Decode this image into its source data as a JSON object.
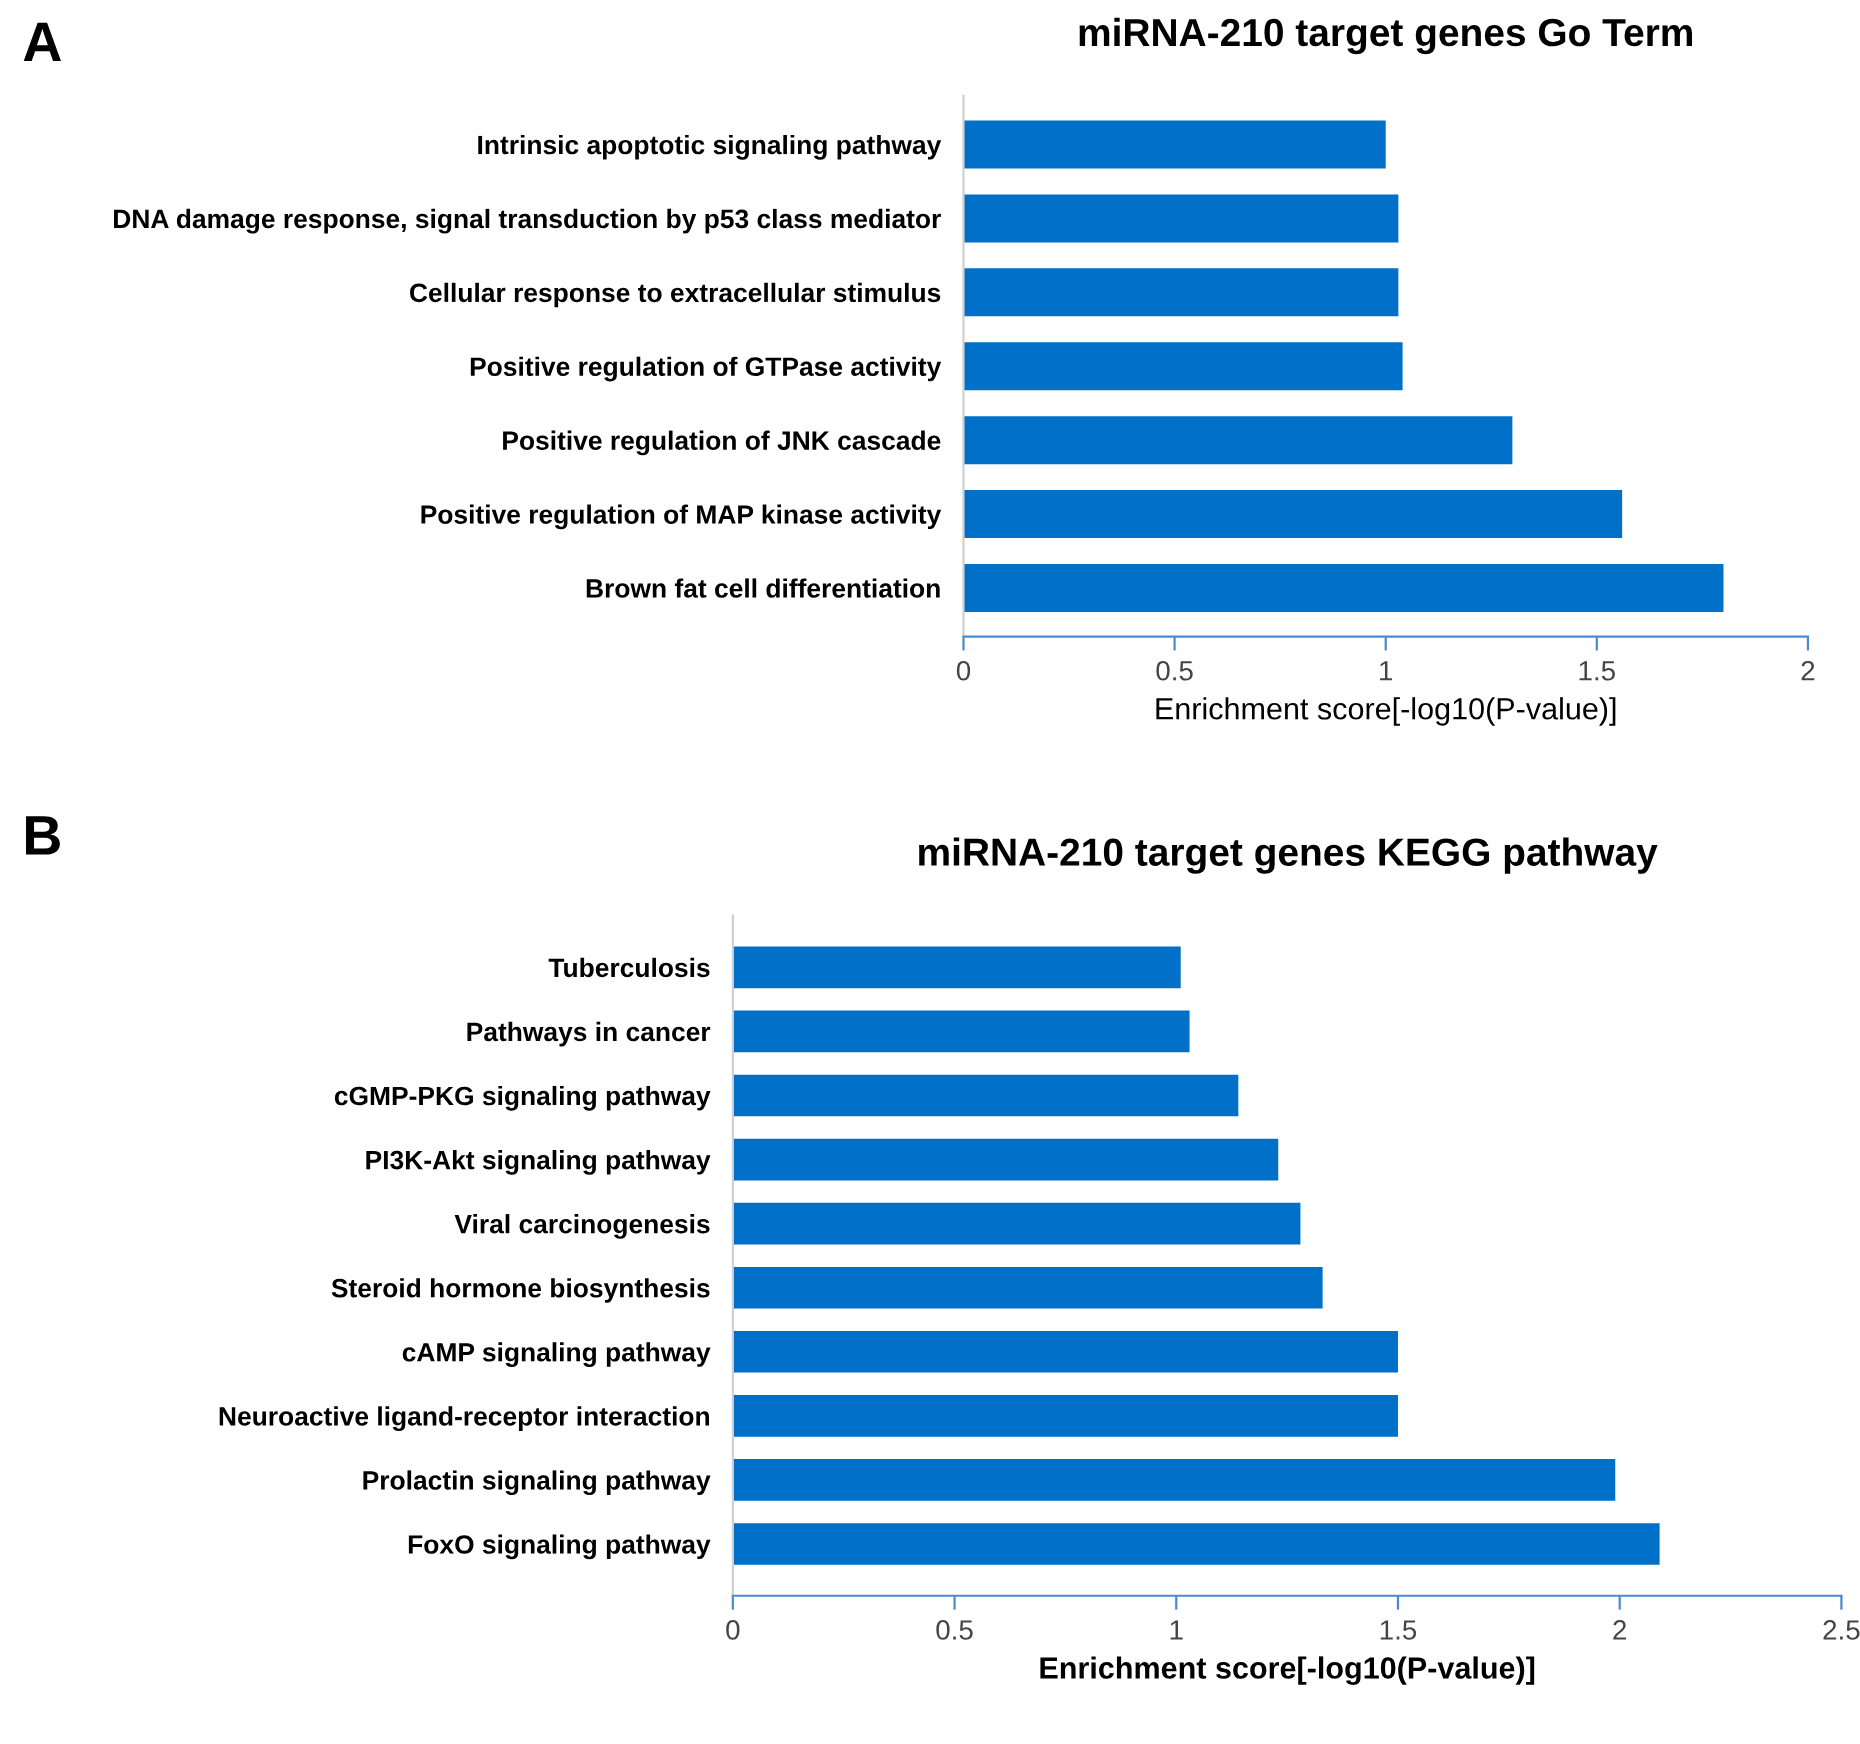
{
  "chart_data": [
    {
      "type": "bar",
      "orientation": "horizontal",
      "title": "miRNA-210 target genes Go Term",
      "xlabel": "Enrichment score[-log10(P-value)]",
      "annotations": [
        "A"
      ],
      "categories": [
        "Intrinsic apoptotic signaling pathway",
        "DNA damage response, signal transduction by p53 class mediator",
        "Cellular response to extracellular stimulus",
        "Positive regulation of GTPase activity",
        "Positive regulation of JNK cascade",
        "Positive regulation of MAP kinase activity",
        "Brown fat cell differentiation"
      ],
      "values": [
        1.0,
        1.03,
        1.03,
        1.04,
        1.3,
        1.56,
        1.8
      ],
      "color": "#0070c8",
      "xlim": [
        0,
        2
      ],
      "xticks": [
        0,
        0.5,
        1,
        1.5,
        2
      ],
      "grid": false
    },
    {
      "type": "bar",
      "orientation": "horizontal",
      "title": "miRNA-210 target genes KEGG pathway",
      "xlabel": "Enrichment score[-log10(P-value)]",
      "annotations": [
        "B"
      ],
      "categories": [
        "Tuberculosis",
        "Pathways in cancer",
        "cGMP-PKG signaling pathway",
        "PI3K-Akt signaling pathway",
        "Viral carcinogenesis",
        "Steroid hormone biosynthesis",
        "cAMP signaling pathway",
        "Neuroactive ligand-receptor interaction",
        "Prolactin signaling pathway",
        "FoxO signaling pathway"
      ],
      "values": [
        1.01,
        1.03,
        1.14,
        1.23,
        1.28,
        1.33,
        1.5,
        1.5,
        1.99,
        2.09
      ],
      "color": "#0070c8",
      "xlim": [
        0,
        2.5
      ],
      "xticks": [
        0,
        0.5,
        1,
        1.5,
        2,
        2.5
      ],
      "grid": false
    }
  ]
}
